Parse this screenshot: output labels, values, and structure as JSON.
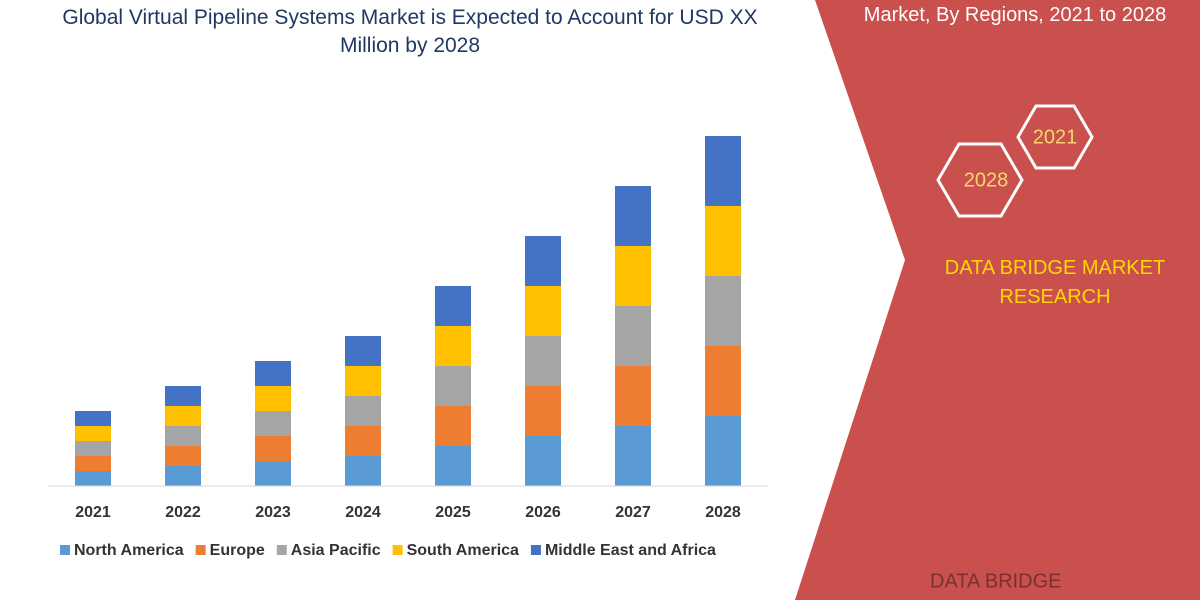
{
  "chart_data": {
    "type": "stacked_bar",
    "title": "Global Virtual Pipeline Systems Market is Expected to Account for USD XX Million by 2028",
    "categories": [
      "2021",
      "2022",
      "2023",
      "2024",
      "2025",
      "2026",
      "2027",
      "2028"
    ],
    "series": [
      {
        "name": "North America",
        "color": "#5b9bd5",
        "values": [
          15,
          20,
          25,
          30,
          40,
          50,
          60,
          70
        ]
      },
      {
        "name": "Europe",
        "color": "#ed7d31",
        "values": [
          15,
          20,
          25,
          30,
          40,
          50,
          60,
          70
        ]
      },
      {
        "name": "Asia Pacific",
        "color": "#a5a5a5",
        "values": [
          15,
          20,
          25,
          30,
          40,
          50,
          60,
          70
        ]
      },
      {
        "name": "South America",
        "color": "#ffc000",
        "values": [
          15,
          20,
          25,
          30,
          40,
          50,
          60,
          70
        ]
      },
      {
        "name": "Middle East and Africa",
        "color": "#4472c4",
        "values": [
          15,
          20,
          25,
          30,
          40,
          50,
          60,
          70
        ]
      }
    ],
    "ylim": [
      0,
      360
    ],
    "legend": "bottom"
  },
  "banner": {
    "subtitle": "Market, By Regions, 2021 to 2028",
    "hex_labels": [
      "2021",
      "2028"
    ],
    "brand": "DATA BRIDGE MARKET RESEARCH",
    "logo": "DATA BRIDGE"
  }
}
